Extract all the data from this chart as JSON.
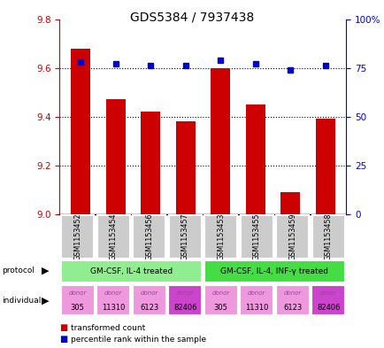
{
  "title": "GDS5384 / 7937438",
  "samples": [
    "GSM1153452",
    "GSM1153454",
    "GSM1153456",
    "GSM1153457",
    "GSM1153453",
    "GSM1153455",
    "GSM1153459",
    "GSM1153458"
  ],
  "red_values": [
    9.68,
    9.47,
    9.42,
    9.38,
    9.6,
    9.45,
    9.09,
    9.39
  ],
  "blue_values": [
    78,
    77,
    76,
    76,
    79,
    77,
    74,
    76
  ],
  "ylim_left": [
    9.0,
    9.8
  ],
  "ylim_right": [
    0,
    100
  ],
  "yticks_left": [
    9.0,
    9.2,
    9.4,
    9.6,
    9.8
  ],
  "yticks_right": [
    0,
    25,
    50,
    75,
    100
  ],
  "ytick_labels_right": [
    "0",
    "25",
    "50",
    "75",
    "100%"
  ],
  "protocol_groups": [
    {
      "label": "GM-CSF, IL-4 treated",
      "start": 0,
      "end": 4,
      "color": "#90EE90"
    },
    {
      "label": "GM-CSF, IL-4, INF-γ treated",
      "start": 4,
      "end": 8,
      "color": "#44DD44"
    }
  ],
  "donors": [
    "305",
    "11310",
    "6123",
    "82406",
    "305",
    "11310",
    "6123",
    "82406"
  ],
  "donor_colors": [
    "#EE99DD",
    "#EE99DD",
    "#EE99DD",
    "#CC44CC",
    "#EE99DD",
    "#EE99DD",
    "#EE99DD",
    "#CC44CC"
  ],
  "bar_color": "#CC0000",
  "dot_color": "#0000CC",
  "axis_color_left": "#CC0000",
  "axis_color_right": "#0000CC",
  "gsm_box_color": "#CCCCCC",
  "gsm_box_edge": "#AAAAAA"
}
